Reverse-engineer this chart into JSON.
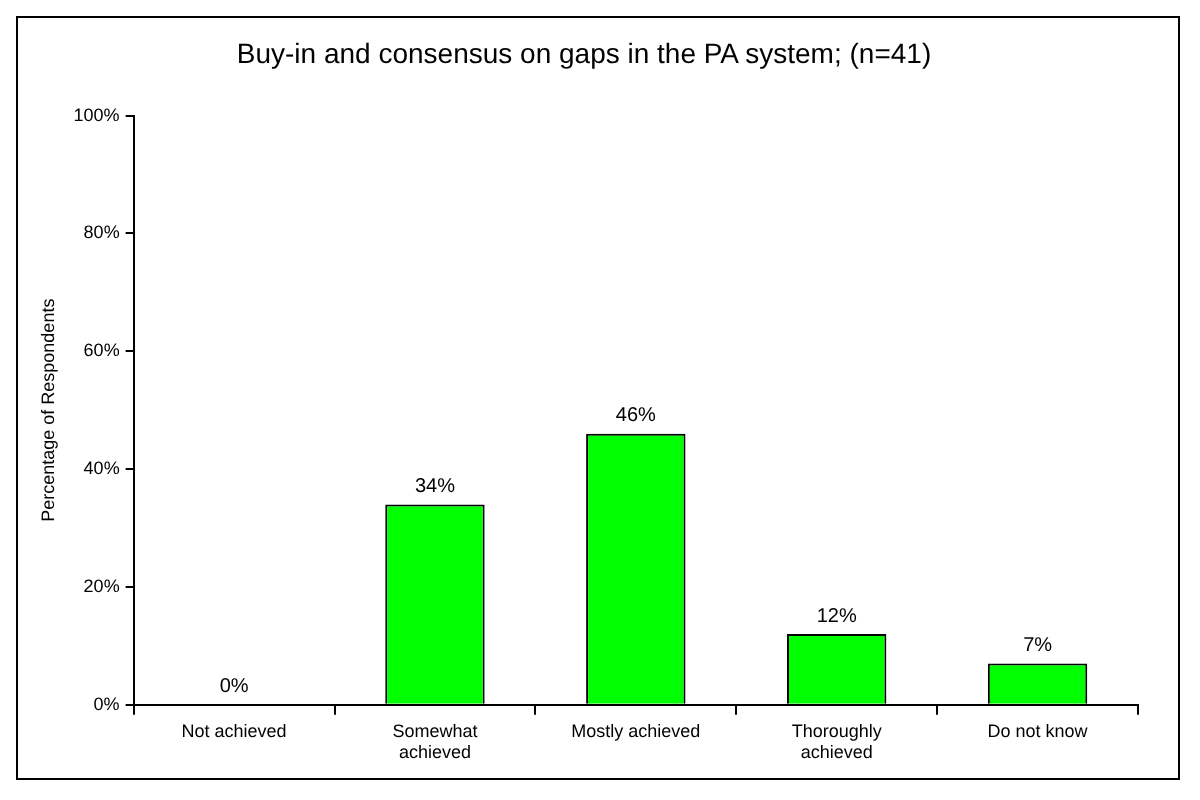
{
  "chart_data": {
    "type": "bar",
    "title": "Buy-in and consensus on gaps in the PA system; (n=41)",
    "ylabel": "Percentage of Respondents",
    "categories": [
      "Not achieved",
      "Somewhat achieved",
      "Mostly achieved",
      "Thoroughly achieved",
      "Do not know"
    ],
    "values": [
      0,
      34,
      46,
      12,
      7
    ],
    "color": "#00ff00",
    "data_labels": true,
    "value_labels": [
      "0%",
      "34%",
      "46%",
      "12%",
      "7%"
    ],
    "ylim": [
      0,
      100
    ],
    "yticks": [
      {
        "value": 0,
        "label": "0%"
      },
      {
        "value": 20,
        "label": "20%"
      },
      {
        "value": 40,
        "label": "40%"
      },
      {
        "value": 60,
        "label": "60%"
      },
      {
        "value": 80,
        "label": "80%"
      },
      {
        "value": 100,
        "label": "100%"
      }
    ],
    "grid": false,
    "legend": false
  }
}
